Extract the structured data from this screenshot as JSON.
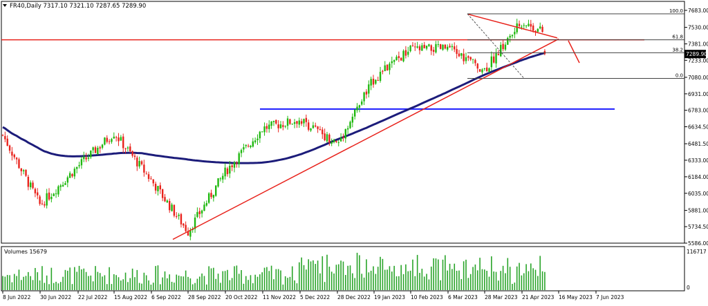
{
  "header": {
    "symbol_info": "FR40,Daily  7317.10 7321.10 7287.65 7289.90",
    "volume_label": "Volumes 15679"
  },
  "chart_data": {
    "type": "candlestick",
    "symbol": "FR40",
    "timeframe": "Daily",
    "last_bar": {
      "open": 7317.1,
      "high": 7321.1,
      "low": 7287.65,
      "close": 7289.9
    },
    "current_price_label": "7289.90",
    "y_ticks": [
      "7683.00",
      "7530.00",
      "7381.00",
      "7233.00",
      "7080.00",
      "6931.00",
      "6783.00",
      "6634.50",
      "6481.50",
      "6333.00",
      "6184.00",
      "6035.00",
      "5881.00",
      "5734.50",
      "5586.00"
    ],
    "x_ticks": [
      "8 Jun 2022",
      "30 Jun 2022",
      "22 Jul 2022",
      "15 Aug 2022",
      "6 Sep 2022",
      "28 Sep 2022",
      "20 Oct 2022",
      "11 Nov 2022",
      "5 Dec 2022",
      "28 Dec 2022",
      "19 Jan 2023",
      "10 Feb 2023",
      "6 Mar 2023",
      "28 Mar 2023",
      "21 Apr 2023",
      "16 May 2023",
      "7 Jun 2023"
    ],
    "ylim": [
      5586,
      7683
    ],
    "volume_ticks": [
      "116717",
      "0"
    ],
    "fibonacci_levels": [
      {
        "label": "100.0",
        "price": 7652
      },
      {
        "label": "61.8",
        "price": 7418
      },
      {
        "label": "38.2",
        "price": 7301
      },
      {
        "label": "0.0",
        "price": 7070
      }
    ],
    "horizontal_levels": [
      {
        "name": "resistance",
        "price": 7418,
        "color": "#e8221b"
      },
      {
        "name": "support",
        "price": 6794,
        "color": "#1a1aff"
      }
    ],
    "colors": {
      "bull": "#1fb80f",
      "bear": "#e8221b",
      "moving_average": "#1c1c7a",
      "trendline": "#e8221b",
      "fib": "#404040",
      "volume": "#28a428"
    },
    "price_path": [
      [
        "8 Jun 2022",
        6560
      ],
      [
        "30 Jun 2022",
        5930
      ],
      [
        "22 Jul 2022",
        6280
      ],
      [
        "15 Aug 2022",
        6580
      ],
      [
        "6 Sep 2022",
        6150
      ],
      [
        "28 Sep 2022",
        5690
      ],
      [
        "20 Oct 2022",
        6230
      ],
      [
        "11 Nov 2022",
        6620
      ],
      [
        "5 Dec 2022",
        6700
      ],
      [
        "28 Dec 2022",
        6480
      ],
      [
        "19 Jan 2023",
        7070
      ],
      [
        "10 Feb 2023",
        7330
      ],
      [
        "6 Mar 2023",
        7340
      ],
      [
        "28 Mar 2023",
        7150
      ],
      [
        "21 Apr 2023",
        7580
      ],
      [
        "16 May 2023",
        7420
      ],
      [
        "7 Jun 2023",
        7289.9
      ]
    ]
  }
}
